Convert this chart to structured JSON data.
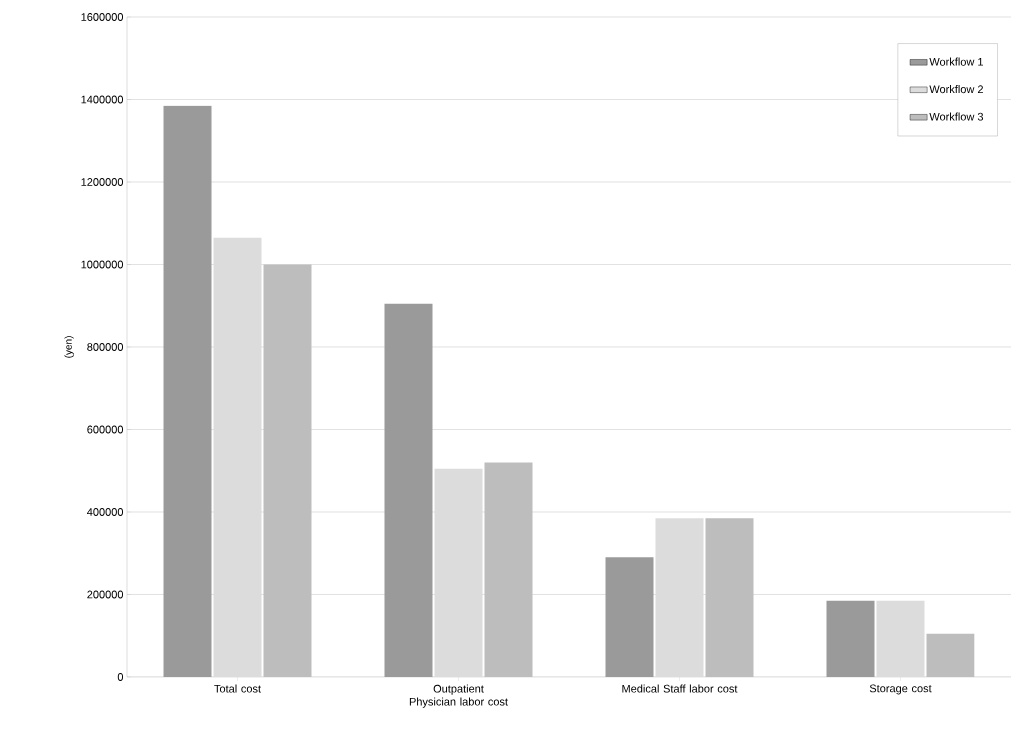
{
  "chart_data": {
    "type": "bar",
    "ylabel": "(yen)",
    "categories": [
      "Total cost",
      "Outpatient Physician labor cost",
      "Medical Staff labor cost",
      "Storage cost"
    ],
    "series": [
      {
        "name": "Workflow 1",
        "color": "#9a9a9a",
        "values": [
          1385000,
          905000,
          290000,
          185000
        ]
      },
      {
        "name": "Workflow 2",
        "color": "#dcdcdc",
        "values": [
          1065000,
          505000,
          385000,
          185000
        ]
      },
      {
        "name": "Workflow 3",
        "color": "#bdbdbd",
        "values": [
          1000000,
          520000,
          385000,
          105000
        ]
      }
    ],
    "ylim": [
      0,
      1600000
    ],
    "yticks": [
      0,
      200000,
      400000,
      600000,
      800000,
      1000000,
      1200000,
      1400000,
      1600000
    ],
    "grid": "y",
    "legend": "top right"
  }
}
